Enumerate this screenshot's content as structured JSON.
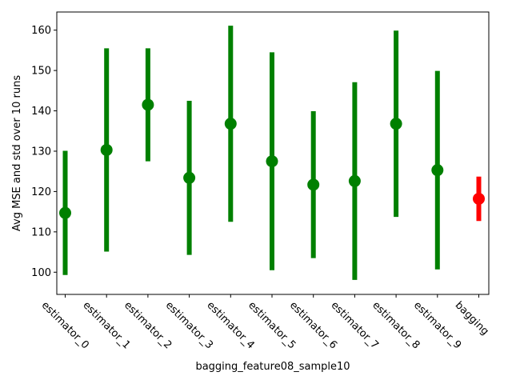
{
  "chart_data": {
    "type": "errorbar",
    "title": "",
    "xlabel": "bagging_feature08_sample10",
    "ylabel": "Avg MSE and std over 10 runs",
    "ylim": [
      94.5,
      164.5
    ],
    "yticks": [
      100,
      110,
      120,
      130,
      140,
      150,
      160
    ],
    "grid": false,
    "categories": [
      "estimator_0",
      "estimator_1",
      "estimator_2",
      "estimator_3",
      "estimator_4",
      "estimator_5",
      "estimator_6",
      "estimator_7",
      "estimator_8",
      "estimator_9",
      "bagging"
    ],
    "series": [
      {
        "color": "#008000",
        "means": [
          114.7,
          130.3,
          141.5,
          123.4,
          136.8,
          127.5,
          121.7,
          122.6,
          136.8,
          125.3,
          null
        ],
        "stds": [
          15.4,
          25.2,
          14.0,
          19.1,
          24.3,
          27.0,
          18.2,
          24.5,
          23.1,
          24.6,
          null
        ]
      },
      {
        "color": "#ff0000",
        "means": [
          null,
          null,
          null,
          null,
          null,
          null,
          null,
          null,
          null,
          null,
          118.2
        ],
        "stds": [
          null,
          null,
          null,
          null,
          null,
          null,
          null,
          null,
          null,
          null,
          5.5
        ]
      }
    ]
  }
}
